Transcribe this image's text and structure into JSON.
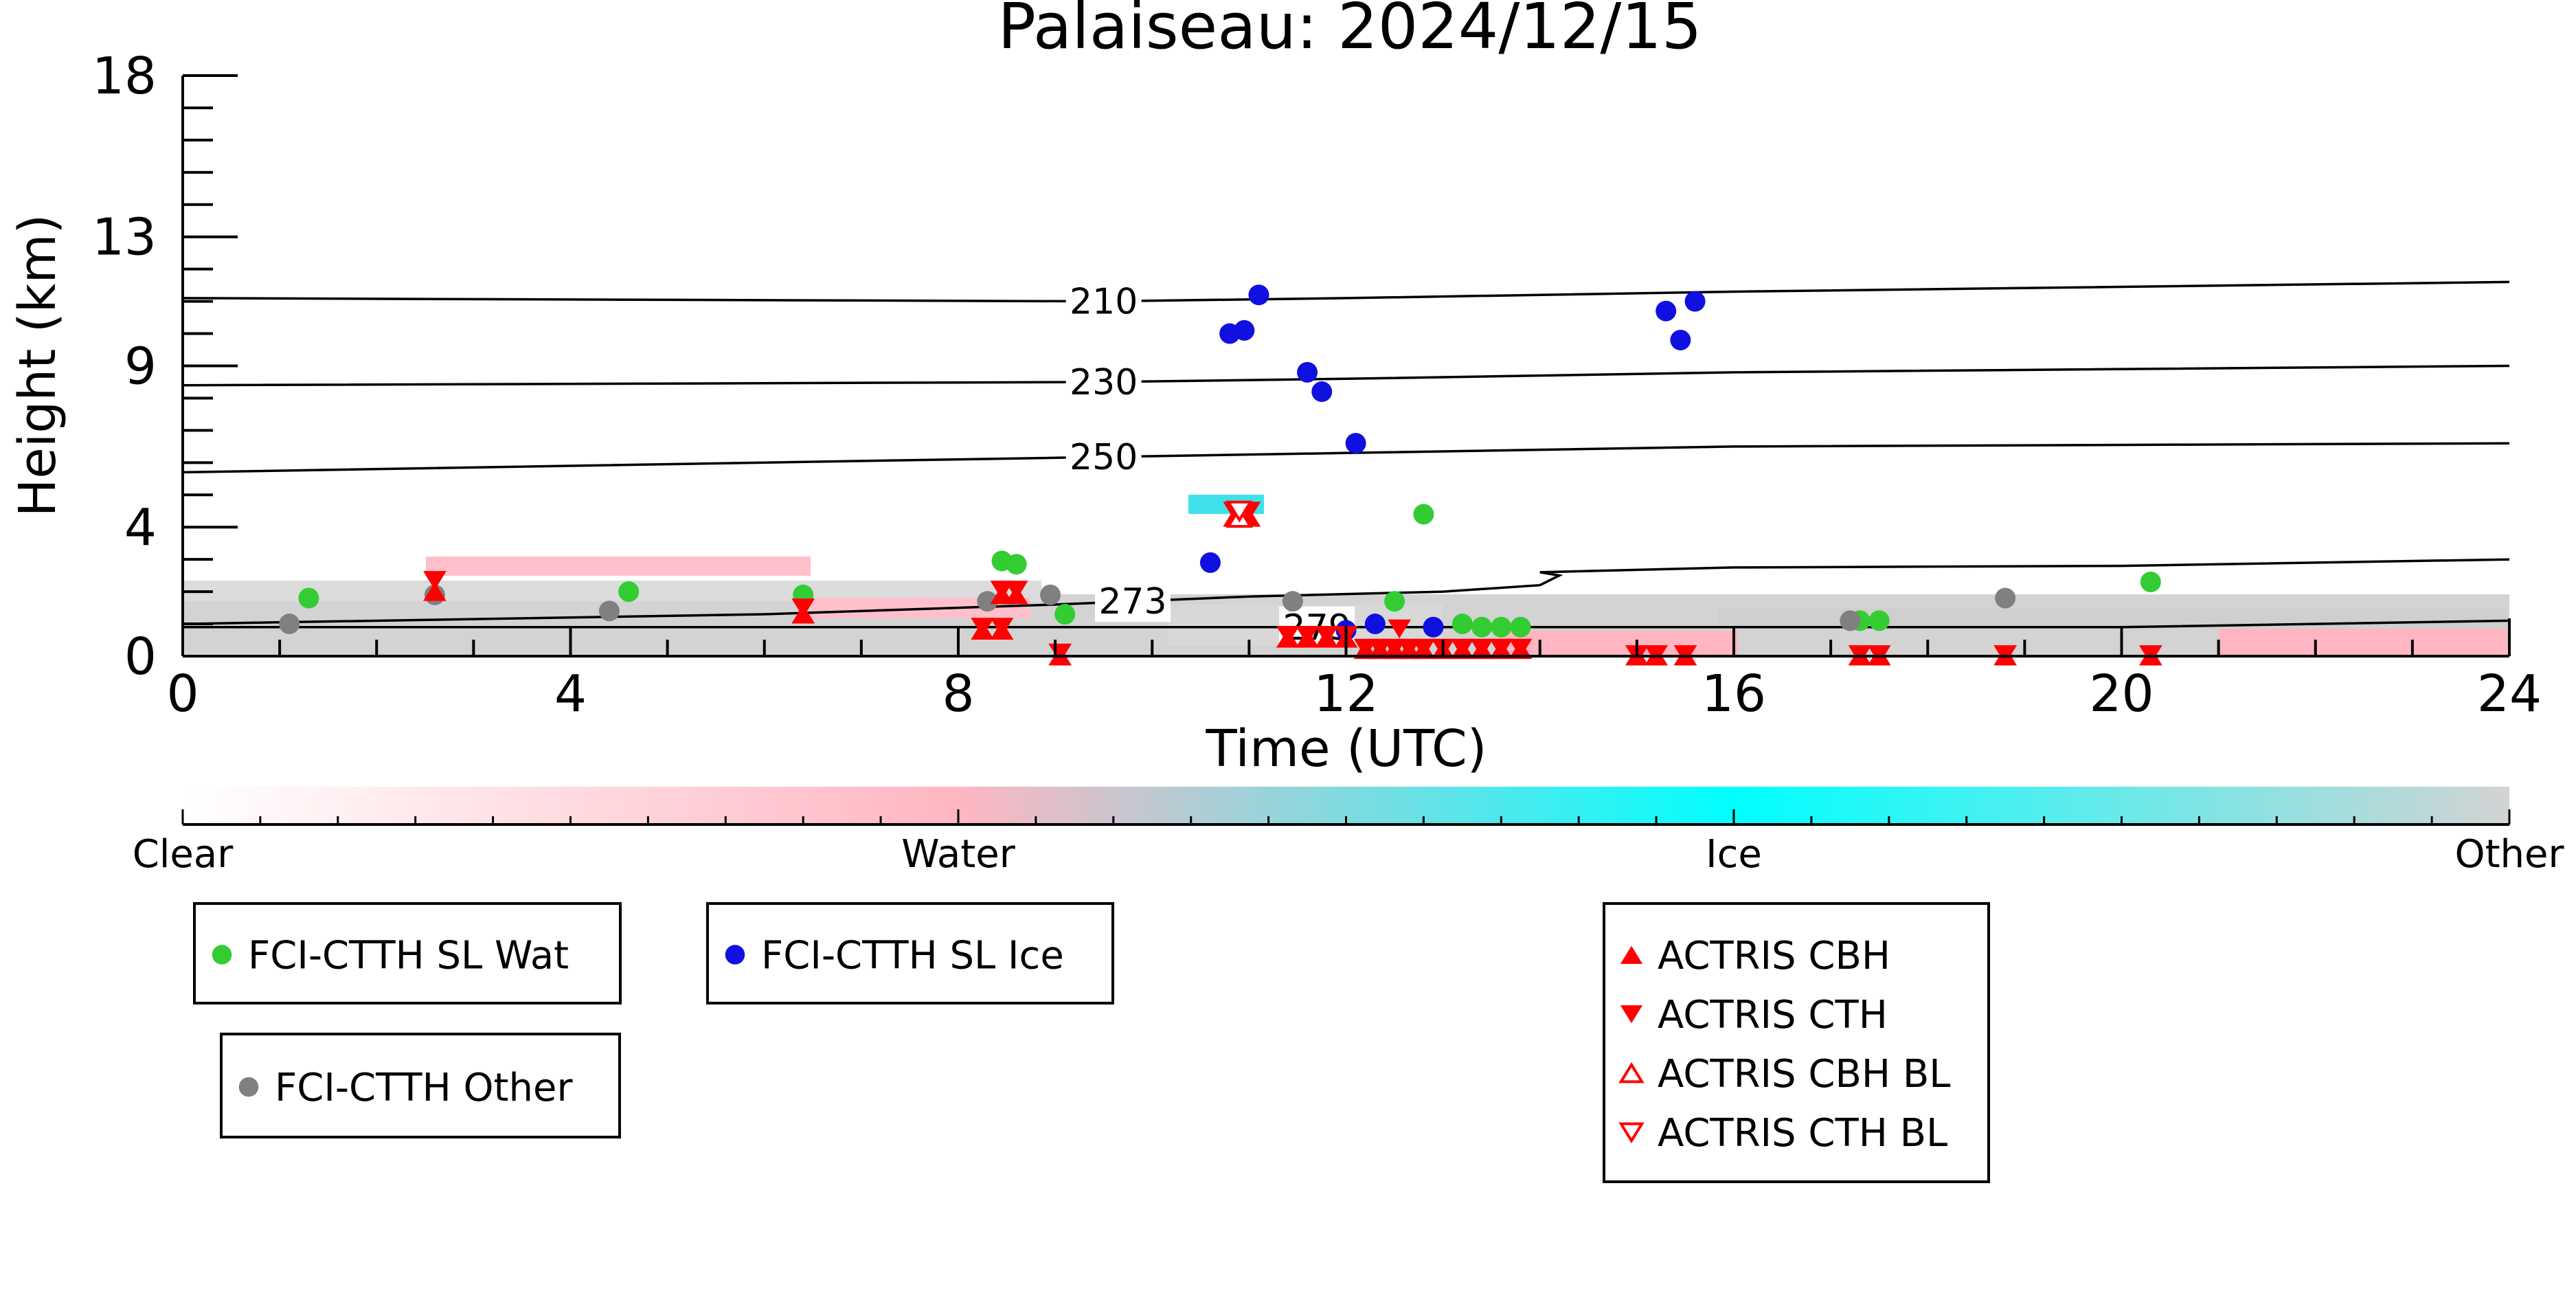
{
  "chart_data": {
    "type": "scatter",
    "title": "Palaiseau: 2024/12/15",
    "xlabel": "Time (UTC)",
    "ylabel": "Height (km)",
    "xlim": [
      0,
      24
    ],
    "ylim": [
      0,
      18
    ],
    "x_ticks": [
      0,
      4,
      8,
      12,
      16,
      20,
      24
    ],
    "y_ticks": [
      0,
      4,
      9,
      13,
      18
    ],
    "grid": false,
    "isotherms": [
      {
        "label": "210",
        "label_x": 9.5,
        "points": [
          [
            0,
            11.1
          ],
          [
            9.5,
            11.0
          ],
          [
            12,
            11.1
          ],
          [
            16,
            11.3
          ],
          [
            24,
            11.6
          ]
        ]
      },
      {
        "label": "230",
        "label_x": 9.5,
        "points": [
          [
            0,
            8.4
          ],
          [
            9.5,
            8.5
          ],
          [
            12,
            8.6
          ],
          [
            16,
            8.8
          ],
          [
            24,
            9.0
          ]
        ]
      },
      {
        "label": "250",
        "label_x": 9.5,
        "points": [
          [
            0,
            5.7
          ],
          [
            8,
            6.1
          ],
          [
            12,
            6.3
          ],
          [
            16,
            6.5
          ],
          [
            24,
            6.6
          ]
        ]
      },
      {
        "label": "273",
        "label_x": 9.8,
        "points": [
          [
            0,
            1.0
          ],
          [
            6,
            1.3
          ],
          [
            9,
            1.6
          ],
          [
            11,
            1.85
          ],
          [
            13,
            2.0
          ],
          [
            14,
            2.2
          ],
          [
            14.2,
            2.5
          ],
          [
            14.0,
            2.6
          ],
          [
            16,
            2.75
          ],
          [
            20,
            2.8
          ],
          [
            24,
            3.0
          ]
        ]
      },
      {
        "label": "279",
        "label_x": 11.7,
        "points": [
          [
            0,
            0.9
          ],
          [
            20,
            0.9
          ],
          [
            24,
            1.1
          ]
        ]
      }
    ],
    "series": [
      {
        "name": "FCI-CTTH SL Wat",
        "color": "#33cc33",
        "marker": "circle",
        "points": [
          [
            1.3,
            1.8
          ],
          [
            4.6,
            2.0
          ],
          [
            6.4,
            1.9
          ],
          [
            8.45,
            2.95
          ],
          [
            8.6,
            2.85
          ],
          [
            9.1,
            1.3
          ],
          [
            12.5,
            1.7
          ],
          [
            12.8,
            4.4
          ],
          [
            13.2,
            1.0
          ],
          [
            13.4,
            0.9
          ],
          [
            13.6,
            0.9
          ],
          [
            13.8,
            0.9
          ],
          [
            17.3,
            1.1
          ],
          [
            17.5,
            1.1
          ],
          [
            20.3,
            2.3
          ]
        ]
      },
      {
        "name": "FCI-CTTH SL Ice",
        "color": "#1010e0",
        "marker": "circle",
        "points": [
          [
            10.6,
            2.9
          ],
          [
            10.8,
            10.0
          ],
          [
            10.95,
            10.1
          ],
          [
            11.1,
            11.2
          ],
          [
            11.6,
            8.8
          ],
          [
            11.75,
            8.2
          ],
          [
            12.0,
            0.8
          ],
          [
            12.1,
            6.6
          ],
          [
            12.3,
            1.0
          ],
          [
            12.9,
            0.9
          ],
          [
            15.3,
            10.7
          ],
          [
            15.45,
            9.8
          ],
          [
            15.6,
            11.0
          ]
        ]
      },
      {
        "name": "FCI-CTTH Other",
        "color": "#808080",
        "marker": "circle",
        "points": [
          [
            1.1,
            1.0
          ],
          [
            2.6,
            1.9
          ],
          [
            4.4,
            1.4
          ],
          [
            8.3,
            1.7
          ],
          [
            8.95,
            1.9
          ],
          [
            11.45,
            1.7
          ],
          [
            17.2,
            1.1
          ],
          [
            18.8,
            1.8
          ]
        ]
      },
      {
        "name": "ACTRIS CBH",
        "color": "#ff0000",
        "marker": "triangle-up",
        "points": [
          [
            2.6,
            2.0
          ],
          [
            6.4,
            1.3
          ],
          [
            8.25,
            0.8
          ],
          [
            8.45,
            0.8
          ],
          [
            8.45,
            1.9
          ],
          [
            8.6,
            1.9
          ],
          [
            9.05,
            0.0
          ],
          [
            10.85,
            4.3
          ],
          [
            11.0,
            4.3
          ],
          [
            11.4,
            0.55
          ],
          [
            11.6,
            0.55
          ],
          [
            11.8,
            0.55
          ],
          [
            12.0,
            0.55
          ],
          [
            12.2,
            0.2
          ],
          [
            12.35,
            0.2
          ],
          [
            12.5,
            0.2
          ],
          [
            12.65,
            0.2
          ],
          [
            12.8,
            0.2
          ],
          [
            13.0,
            0.2
          ],
          [
            13.2,
            0.2
          ],
          [
            13.4,
            0.2
          ],
          [
            13.6,
            0.2
          ],
          [
            13.8,
            0.2
          ],
          [
            15.0,
            0.0
          ],
          [
            15.2,
            0.0
          ],
          [
            15.5,
            0.0
          ],
          [
            17.3,
            0.0
          ],
          [
            17.5,
            0.0
          ],
          [
            18.8,
            0.0
          ],
          [
            20.3,
            0.0
          ]
        ]
      },
      {
        "name": "ACTRIS CTH",
        "color": "#ff0000",
        "marker": "triangle-down",
        "points": [
          [
            2.6,
            2.35
          ],
          [
            6.4,
            1.5
          ],
          [
            8.25,
            0.9
          ],
          [
            8.45,
            0.9
          ],
          [
            8.45,
            2.05
          ],
          [
            8.6,
            2.05
          ],
          [
            9.05,
            0.1
          ],
          [
            10.85,
            4.5
          ],
          [
            11.0,
            4.5
          ],
          [
            11.4,
            0.65
          ],
          [
            11.6,
            0.65
          ],
          [
            11.8,
            0.65
          ],
          [
            12.0,
            0.65
          ],
          [
            12.55,
            0.85
          ],
          [
            12.2,
            0.25
          ],
          [
            12.35,
            0.25
          ],
          [
            12.5,
            0.25
          ],
          [
            12.65,
            0.25
          ],
          [
            12.8,
            0.25
          ],
          [
            13.0,
            0.25
          ],
          [
            13.2,
            0.25
          ],
          [
            13.4,
            0.25
          ],
          [
            13.6,
            0.25
          ],
          [
            13.8,
            0.25
          ],
          [
            15.0,
            0.05
          ],
          [
            15.2,
            0.05
          ],
          [
            15.5,
            0.05
          ],
          [
            17.3,
            0.05
          ],
          [
            17.5,
            0.05
          ],
          [
            18.8,
            0.05
          ],
          [
            20.3,
            0.05
          ]
        ]
      },
      {
        "name": "ACTRIS CBH BL",
        "color": "#ff0000",
        "marker": "triangle-up-open",
        "points": [
          [
            10.9,
            4.3
          ]
        ]
      },
      {
        "name": "ACTRIS CTH BL",
        "color": "#ff0000",
        "marker": "triangle-down-open",
        "points": [
          [
            10.9,
            4.5
          ]
        ]
      }
    ],
    "colorbar": {
      "ticklabels": [
        "Clear",
        "Water",
        "Ice",
        "Other"
      ],
      "colors": [
        "#ffffff",
        "#ffb6c1",
        "#00ffff",
        "#d3d3d3"
      ]
    },
    "legend_boxes": [
      [
        "FCI-CTTH SL Wat"
      ],
      [
        "FCI-CTTH SL Ice"
      ],
      [
        "FCI-CTTH Other"
      ],
      [
        "ACTRIS CBH",
        "ACTRIS CTH",
        "ACTRIS CBH BL",
        "ACTRIS CTH BL"
      ]
    ]
  }
}
